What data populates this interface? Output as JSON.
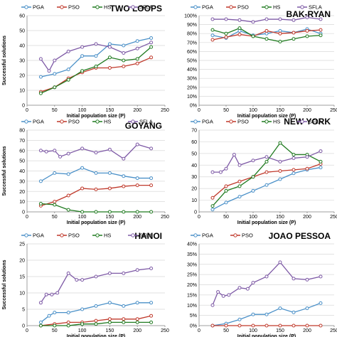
{
  "colors": {
    "PGA": "#4a90c8",
    "PSO": "#c0392b",
    "HS": "#1f7a1f",
    "SFLA": "#7e5aa6",
    "grid": "#d9d9d9",
    "axis": "#888888",
    "text": "#000000"
  },
  "chart_data": [
    {
      "type": "line",
      "title": "TWO LOOPS",
      "xlabel": "Initial population size (P)",
      "ylabel": "Successful solutions",
      "xlim": [
        0,
        250
      ],
      "x_ticks": [
        "0",
        "50",
        "100",
        "150",
        "200",
        "250"
      ],
      "ylim": [
        0,
        60
      ],
      "y_ticks": [
        "0",
        "10",
        "20",
        "30",
        "40",
        "50",
        "60"
      ],
      "grid": true,
      "legend": [
        "PGA",
        "PSO",
        "HS",
        "SFLA"
      ],
      "series": [
        {
          "name": "PGA",
          "x": [
            25,
            50,
            75,
            100,
            125,
            150,
            175,
            200,
            225
          ],
          "values": [
            19,
            21,
            24,
            33,
            33,
            41,
            40,
            43,
            45
          ]
        },
        {
          "name": "PSO",
          "x": [
            25,
            50,
            75,
            100,
            125,
            150,
            175,
            200,
            225
          ],
          "values": [
            9,
            12,
            18,
            22,
            25,
            25,
            26,
            28,
            32
          ]
        },
        {
          "name": "HS",
          "x": [
            25,
            50,
            75,
            100,
            125,
            150,
            175,
            200,
            225
          ],
          "values": [
            8,
            12,
            17,
            23,
            26,
            32,
            30,
            31,
            39
          ]
        },
        {
          "name": "SFLA",
          "x": [
            25,
            40,
            50,
            75,
            100,
            125,
            150,
            175,
            200,
            225
          ],
          "values": [
            31,
            23,
            30,
            36,
            39,
            41,
            39,
            35,
            38,
            42
          ]
        }
      ]
    },
    {
      "type": "line",
      "title": "BAK-RYAN",
      "xlabel": "Initial population size (P)",
      "ylabel": "",
      "xlim": [
        0,
        250
      ],
      "x_ticks": [
        "0",
        "50",
        "100",
        "150",
        "200",
        "250"
      ],
      "ylim": [
        0,
        100
      ],
      "y_ticks": [
        "0%",
        "10%",
        "20%",
        "30%",
        "40%",
        "50%",
        "60%",
        "70%",
        "80%",
        "90%",
        "100%"
      ],
      "grid": true,
      "legend": [
        "PGA",
        "PSO",
        "HS",
        "SFLA"
      ],
      "series": [
        {
          "name": "PGA",
          "x": [
            25,
            50,
            75,
            100,
            125,
            150,
            175,
            200,
            225
          ],
          "values": [
            78,
            75,
            83,
            78,
            80,
            83,
            81,
            85,
            80
          ]
        },
        {
          "name": "PSO",
          "x": [
            25,
            50,
            75,
            100,
            125,
            150,
            175,
            200,
            225
          ],
          "values": [
            73,
            76,
            79,
            77,
            83,
            80,
            81,
            83,
            84
          ]
        },
        {
          "name": "HS",
          "x": [
            25,
            50,
            75,
            100,
            125,
            150,
            175,
            200,
            225
          ],
          "values": [
            84,
            80,
            86,
            77,
            74,
            71,
            74,
            77,
            78
          ]
        },
        {
          "name": "SFLA",
          "x": [
            25,
            50,
            75,
            100,
            125,
            150,
            175,
            200,
            225
          ],
          "values": [
            96,
            96,
            95,
            93,
            96,
            96,
            95,
            98,
            96
          ]
        }
      ]
    },
    {
      "type": "line",
      "title": "GOYANG",
      "xlabel": "Initial population size (P)",
      "ylabel": "Successful solutions",
      "xlim": [
        0,
        250
      ],
      "x_ticks": [
        "0",
        "50",
        "100",
        "150",
        "200",
        "250"
      ],
      "ylim": [
        0,
        80
      ],
      "y_ticks": [
        "0",
        "10",
        "20",
        "30",
        "40",
        "50",
        "60",
        "70",
        "80"
      ],
      "grid": true,
      "legend": [
        "PGA",
        "PSO",
        "HS",
        "SFLA"
      ],
      "series": [
        {
          "name": "PGA",
          "x": [
            25,
            50,
            75,
            100,
            125,
            150,
            175,
            200,
            225
          ],
          "values": [
            30,
            38,
            37,
            43,
            38,
            38,
            35,
            33,
            33
          ]
        },
        {
          "name": "PSO",
          "x": [
            25,
            50,
            75,
            100,
            125,
            150,
            175,
            200,
            225
          ],
          "values": [
            6,
            10,
            16,
            23,
            22,
            23,
            25,
            26,
            26
          ]
        },
        {
          "name": "HS",
          "x": [
            25,
            50,
            75,
            100,
            125,
            150,
            175,
            200,
            225
          ],
          "values": [
            8,
            7,
            2,
            0,
            0,
            0,
            0,
            0,
            0
          ]
        },
        {
          "name": "SFLA",
          "x": [
            25,
            35,
            50,
            60,
            75,
            100,
            125,
            150,
            175,
            200,
            225
          ],
          "values": [
            60,
            59,
            60,
            54,
            57,
            62,
            58,
            61,
            52,
            66,
            62
          ]
        }
      ]
    },
    {
      "type": "line",
      "title": "NEW YORK",
      "xlabel": "Initial population size (P)",
      "ylabel": "",
      "xlim": [
        0,
        250
      ],
      "x_ticks": [
        "0",
        "50",
        "100",
        "150",
        "200",
        "250"
      ],
      "ylim": [
        0,
        70
      ],
      "y_ticks": [
        "0",
        "10",
        "20",
        "30",
        "40",
        "50",
        "60",
        "70"
      ],
      "grid": true,
      "legend": [
        "PGA",
        "PSO",
        "HS",
        "SFLA"
      ],
      "series": [
        {
          "name": "PGA",
          "x": [
            25,
            50,
            75,
            100,
            125,
            150,
            175,
            200,
            225
          ],
          "values": [
            2,
            8,
            13,
            18,
            23,
            28,
            33,
            36,
            38
          ]
        },
        {
          "name": "PSO",
          "x": [
            25,
            50,
            75,
            100,
            125,
            150,
            175,
            200,
            225
          ],
          "values": [
            12,
            22,
            26,
            30,
            34,
            35,
            36,
            37,
            41
          ]
        },
        {
          "name": "HS",
          "x": [
            25,
            50,
            75,
            100,
            125,
            150,
            175,
            200,
            225
          ],
          "values": [
            5,
            18,
            22,
            30,
            43,
            59,
            49,
            49,
            43
          ]
        },
        {
          "name": "SFLA",
          "x": [
            25,
            40,
            50,
            65,
            75,
            100,
            125,
            150,
            175,
            200,
            225
          ],
          "values": [
            34,
            34,
            37,
            49,
            40,
            44,
            47,
            43,
            46,
            47,
            52
          ]
        }
      ]
    },
    {
      "type": "line",
      "title": "HANOI",
      "xlabel": "Initial population size (P)",
      "ylabel": "Successful solutions",
      "xlim": [
        0,
        250
      ],
      "x_ticks": [
        "0",
        "50",
        "100",
        "150",
        "200",
        "250"
      ],
      "ylim": [
        0,
        25
      ],
      "y_ticks": [
        "0",
        "5",
        "10",
        "15",
        "20",
        "25"
      ],
      "grid": true,
      "legend": [
        "PGA",
        "PSO",
        "HS",
        "SFLA"
      ],
      "series": [
        {
          "name": "PGA",
          "x": [
            25,
            40,
            50,
            75,
            100,
            125,
            150,
            175,
            200,
            225
          ],
          "values": [
            1,
            3,
            4,
            4,
            5,
            6,
            7,
            6,
            7,
            7
          ]
        },
        {
          "name": "PSO",
          "x": [
            25,
            50,
            75,
            100,
            125,
            150,
            175,
            200,
            225
          ],
          "values": [
            0,
            0.5,
            1,
            1,
            1.5,
            2,
            2,
            2,
            3
          ]
        },
        {
          "name": "HS",
          "x": [
            25,
            50,
            75,
            100,
            125,
            150,
            175,
            200,
            225
          ],
          "values": [
            0,
            0,
            0,
            0.5,
            0.5,
            1,
            1,
            1,
            1
          ]
        },
        {
          "name": "SFLA",
          "x": [
            25,
            35,
            45,
            55,
            75,
            90,
            100,
            125,
            150,
            175,
            200,
            225
          ],
          "values": [
            7,
            9.5,
            9.5,
            10,
            16,
            14,
            14,
            15,
            16,
            16,
            17,
            17.5
          ]
        }
      ]
    },
    {
      "type": "line",
      "title": "JOAO PESSOA",
      "xlabel": "Initial population size (P)",
      "ylabel": "",
      "xlim": [
        0,
        250
      ],
      "x_ticks": [
        "0",
        "50",
        "100",
        "150",
        "200",
        "250"
      ],
      "ylim": [
        0,
        40
      ],
      "y_ticks": [
        "0%",
        "5%",
        "10%",
        "15%",
        "20%",
        "25%",
        "30%",
        "35%",
        "40%"
      ],
      "grid": true,
      "legend": [
        "PGA",
        "PSO"
      ],
      "series": [
        {
          "name": "PGA",
          "x": [
            25,
            50,
            75,
            100,
            125,
            150,
            175,
            200,
            225
          ],
          "values": [
            0,
            1,
            3,
            5.5,
            5.5,
            8.5,
            6.5,
            8.5,
            11
          ]
        },
        {
          "name": "PSO",
          "x": [
            25,
            50,
            75,
            100,
            125,
            150,
            175,
            200,
            225
          ],
          "values": [
            0,
            0,
            0,
            0,
            0,
            0,
            0,
            0,
            0
          ]
        },
        {
          "name": "SFLA",
          "x": [
            25,
            35,
            45,
            55,
            75,
            90,
            100,
            125,
            150,
            175,
            200,
            225
          ],
          "values": [
            10,
            16.5,
            14.5,
            15,
            18.5,
            18,
            21,
            24,
            31,
            23,
            22.5,
            24
          ]
        }
      ]
    }
  ]
}
